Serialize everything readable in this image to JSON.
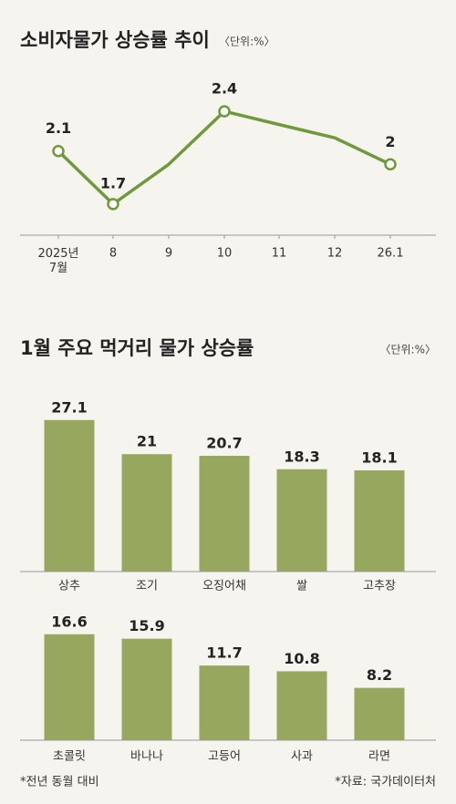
{
  "chart_data": [
    {
      "type": "line",
      "title": "소비자물가 상승률 추이",
      "unit": "〈단위:%〉",
      "categories": [
        "2025년\n7월",
        "8",
        "9",
        "10",
        "11",
        "12",
        "26.1"
      ],
      "values": [
        2.1,
        1.7,
        2.0,
        2.4,
        2.3,
        2.2,
        2
      ],
      "marker_points": [
        true,
        true,
        false,
        true,
        false,
        false,
        true
      ],
      "color": "#6f9a3a",
      "ylim": [
        1.5,
        2.6
      ]
    },
    {
      "type": "bar",
      "title": "1월 주요 먹거리 물가 상승률",
      "unit": "〈단위:%〉",
      "categories": [
        "상추",
        "조기",
        "오징어채",
        "쌀",
        "고추장"
      ],
      "values": [
        27.1,
        21,
        20.7,
        18.3,
        18.1
      ],
      "color": "#97a85e",
      "ylim": [
        0,
        30
      ]
    },
    {
      "type": "bar",
      "categories": [
        "초콜릿",
        "바나나",
        "고등어",
        "사과",
        "라면"
      ],
      "values": [
        16.6,
        15.9,
        11.7,
        10.8,
        8.2
      ],
      "color": "#97a85e",
      "ylim": [
        0,
        20
      ]
    }
  ],
  "notes": {
    "left": "*전년 동월 대비",
    "right": "*자료: 국가데이터처"
  }
}
